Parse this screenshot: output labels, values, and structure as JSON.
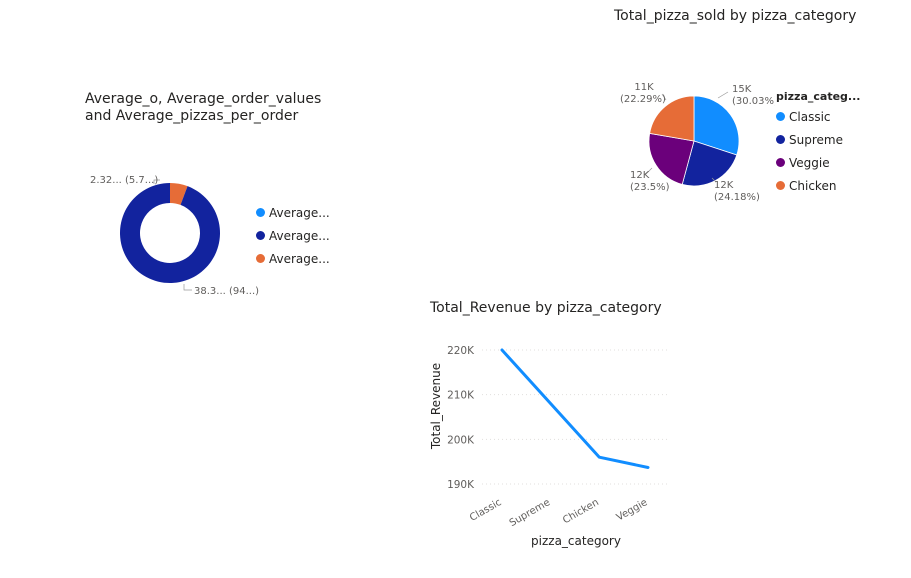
{
  "charts": {
    "donut": {
      "title": "Average_o, Average_order_values\nand Average_pizzas_per_order",
      "legend": [
        {
          "label": "Average...",
          "color": "#118DFF"
        },
        {
          "label": "Average...",
          "color": "#12239E"
        },
        {
          "label": "Average...",
          "color": "#E66C37"
        }
      ],
      "labels": {
        "small": "2.32... (5.7...)",
        "large": "38.3... (94...)"
      }
    },
    "pie": {
      "title": "Total_pizza_sold by pizza_category",
      "legend_title": "pizza_categ...",
      "legend": [
        {
          "label": "Classic",
          "color": "#118DFF"
        },
        {
          "label": "Supreme",
          "color": "#12239E"
        },
        {
          "label": "Veggie",
          "color": "#6B007B"
        },
        {
          "label": "Chicken",
          "color": "#E66C37"
        }
      ],
      "slice_labels": [
        {
          "value": "15K",
          "pct": "(30.03%)"
        },
        {
          "value": "12K",
          "pct": "(24.18%)"
        },
        {
          "value": "12K",
          "pct": "(23.5%)"
        },
        {
          "value": "11K",
          "pct": "(22.29%)"
        }
      ]
    },
    "line": {
      "title": "Total_Revenue by pizza_category",
      "xlabel": "pizza_category",
      "ylabel": "Total_Revenue",
      "yticks": [
        "220K",
        "210K",
        "200K",
        "190K"
      ],
      "line_color": "#118DFF"
    }
  },
  "chart_data": [
    {
      "type": "pie",
      "title": "Average_o, Average_order_values and Average_pizzas_per_order",
      "series": [
        {
          "name": "Average...",
          "value": 0,
          "color": "#118DFF"
        },
        {
          "name": "Average...",
          "value": 38.3,
          "percent": 94.3,
          "color": "#12239E"
        },
        {
          "name": "Average...",
          "value": 2.32,
          "percent": 5.7,
          "color": "#E66C37"
        }
      ],
      "donut": true,
      "legend_position": "right"
    },
    {
      "type": "pie",
      "title": "Total_pizza_sold by pizza_category",
      "categories": [
        "Classic",
        "Supreme",
        "Veggie",
        "Chicken"
      ],
      "values": [
        14888,
        11987,
        11649,
        11050
      ],
      "percentages": [
        30.03,
        24.18,
        23.5,
        22.29
      ],
      "colors": [
        "#118DFF",
        "#12239E",
        "#6B007B",
        "#E66C37"
      ],
      "legend_position": "right"
    },
    {
      "type": "line",
      "title": "Total_Revenue by pizza_category",
      "categories": [
        "Classic",
        "Supreme",
        "Chicken",
        "Veggie"
      ],
      "values": [
        220000,
        208000,
        196000,
        193700
      ],
      "xlabel": "pizza_category",
      "ylabel": "Total_Revenue",
      "ylim": [
        188000,
        222000
      ],
      "yticks": [
        190000,
        200000,
        210000,
        220000
      ],
      "grid": true
    }
  ]
}
